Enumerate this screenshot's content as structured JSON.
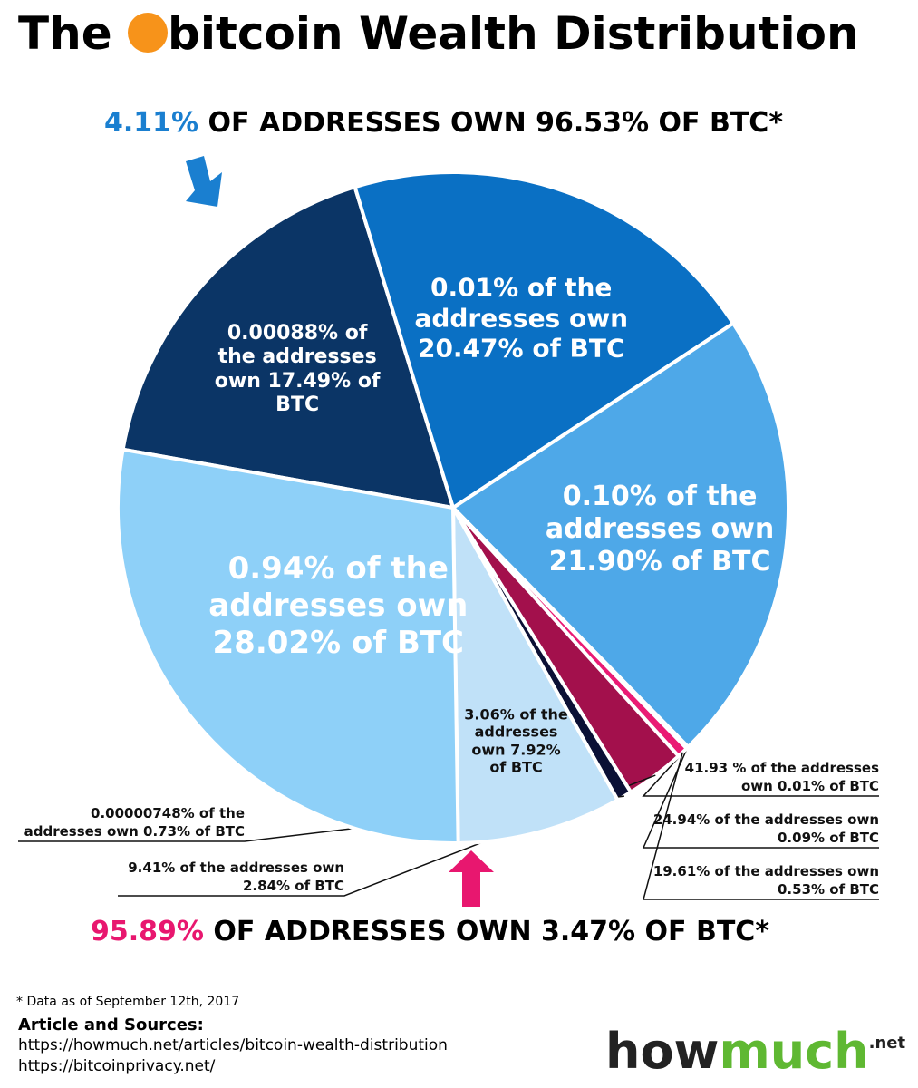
{
  "title_parts": [
    "The",
    "bitcoin Wealth Distribution"
  ],
  "chart_data": {
    "type": "pie",
    "headline_top": {
      "highlight": "4.11%",
      "text": "OF ADDRESSES OWN 96.53% OF BTC*"
    },
    "headline_bottom": {
      "highlight": "95.89%",
      "text": "OF ADDRESSES OWN 3.47% OF BTC*"
    },
    "categories": [
      "0.00088% of the addresses own 17.49% of BTC",
      "0.01% of the addresses own 20.47% of BTC",
      "0.10% of the addresses own 21.90% of BTC",
      "41.93 % of the addresses own 0.01% of BTC",
      "24.94% of the addresses own 0.09% of BTC",
      "19.61% of the addresses own 0.53% of BTC",
      "9.41% of the addresses own 2.84% of BTC",
      "0.00000748% of the addresses own 0.73% of BTC",
      "3.06% of the addresses own 7.92% of BTC",
      "0.94% of the addresses own 28.02% of BTC"
    ],
    "values": [
      17.49,
      20.47,
      21.9,
      0.01,
      0.09,
      0.53,
      2.84,
      0.73,
      7.92,
      28.02
    ],
    "colors": [
      "#0b3566",
      "#0a70c4",
      "#4ea8e8",
      "#f29ac0",
      "#ee6fa3",
      "#ea1a74",
      "#a3104c",
      "#0b1035",
      "#c0e1f8",
      "#8ed0f8"
    ]
  },
  "footer": {
    "note": "* Data as of September 12th, 2017",
    "sources_title": "Article and Sources:",
    "links": [
      "https://howmuch.net/articles/bitcoin-wealth-distribution",
      "https://bitcoinprivacy.net/"
    ]
  },
  "logo": {
    "how": "how",
    "much": "much",
    "suffix": ".net"
  }
}
